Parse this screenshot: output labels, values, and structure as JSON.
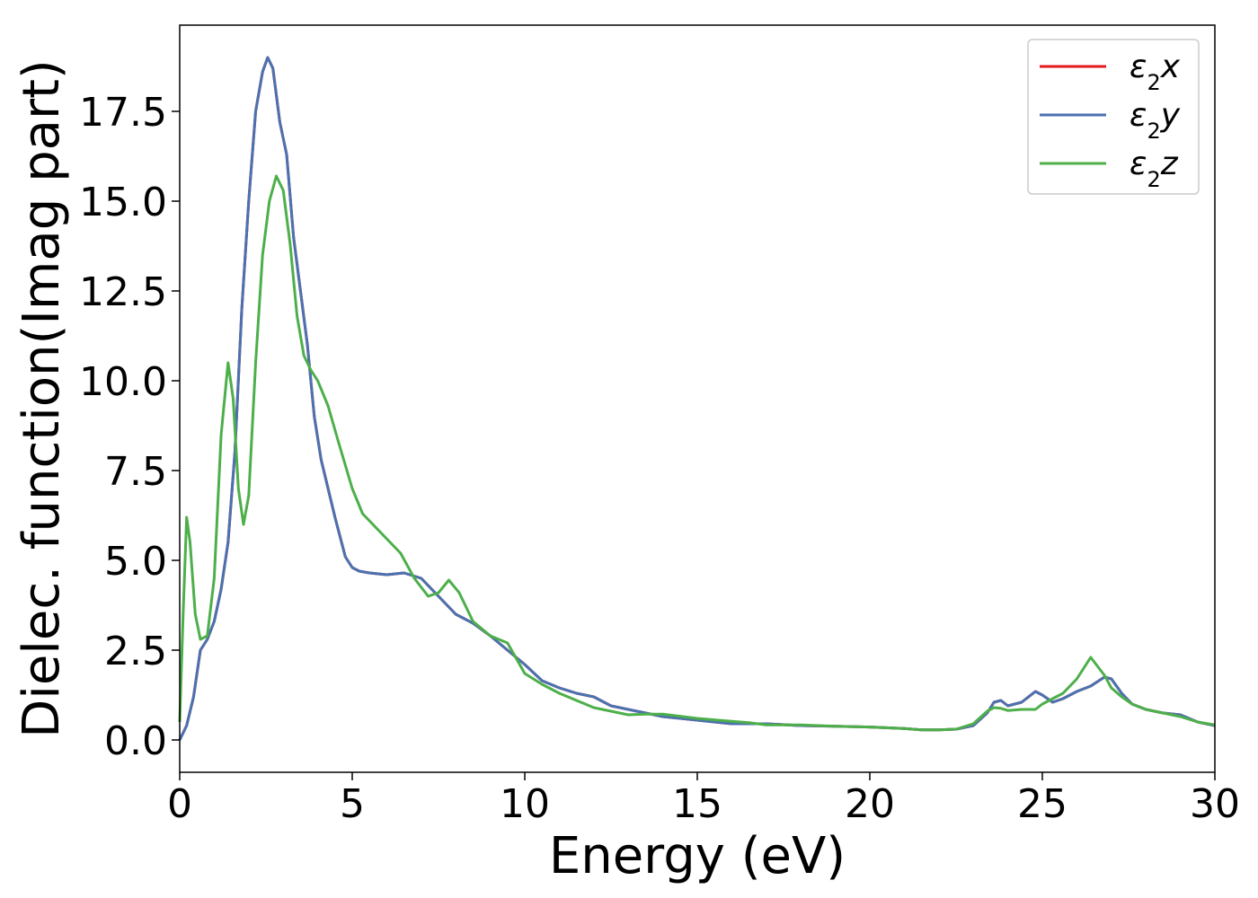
{
  "chart_data": {
    "type": "line",
    "xlabel": "Energy (eV)",
    "ylabel": "Dielec. function(Imag part)",
    "xlim": [
      0,
      30
    ],
    "ylim": [
      -0.9,
      19.9
    ],
    "xticks": [
      0,
      5,
      10,
      15,
      20,
      25,
      30
    ],
    "xtick_labels": [
      "0",
      "5",
      "10",
      "15",
      "20",
      "25",
      "30"
    ],
    "yticks": [
      0,
      2.5,
      5,
      7.5,
      10,
      12.5,
      15,
      17.5
    ],
    "ytick_labels": [
      "0.0",
      "2.5",
      "5.0",
      "7.5",
      "10.0",
      "12.5",
      "15.0",
      "17.5"
    ],
    "grid": false,
    "legend_position": "top-right",
    "series": [
      {
        "name": "ε₂x",
        "legend_base": "ε",
        "legend_sub": "2",
        "legend_var": "x",
        "color": "#e41a1c",
        "x": [
          0,
          0.2,
          0.4,
          0.6,
          0.8,
          1.0,
          1.2,
          1.4,
          1.6,
          1.8,
          2.0,
          2.2,
          2.4,
          2.55,
          2.7,
          2.9,
          3.1,
          3.3,
          3.5,
          3.7,
          3.9,
          4.1,
          4.3,
          4.5,
          4.8,
          5.0,
          5.2,
          5.5,
          6.0,
          6.5,
          7.0,
          7.5,
          8.0,
          8.5,
          9.0,
          9.5,
          10.0,
          10.5,
          11.0,
          11.5,
          12.0,
          12.5,
          13.0,
          13.5,
          14.0,
          15.0,
          16.0,
          16.5,
          17.0,
          18.0,
          19.0,
          20.0,
          21.0,
          21.5,
          22.0,
          22.5,
          23.0,
          23.4,
          23.6,
          23.8,
          24.0,
          24.4,
          24.8,
          25.0,
          25.3,
          25.6,
          26.0,
          26.4,
          26.8,
          27.0,
          27.3,
          27.6,
          28.0,
          28.5,
          29.0,
          29.5,
          30.0
        ],
        "y": [
          0.0,
          0.4,
          1.2,
          2.5,
          2.8,
          3.3,
          4.2,
          5.5,
          8.0,
          12.0,
          15.0,
          17.5,
          18.6,
          19.0,
          18.7,
          17.2,
          16.3,
          14.0,
          12.5,
          11.0,
          9.0,
          7.8,
          7.0,
          6.2,
          5.1,
          4.8,
          4.7,
          4.65,
          4.6,
          4.65,
          4.5,
          4.0,
          3.5,
          3.25,
          2.9,
          2.5,
          2.1,
          1.65,
          1.45,
          1.3,
          1.2,
          0.95,
          0.85,
          0.75,
          0.65,
          0.55,
          0.45,
          0.45,
          0.45,
          0.4,
          0.38,
          0.36,
          0.32,
          0.28,
          0.28,
          0.3,
          0.4,
          0.75,
          1.05,
          1.1,
          0.95,
          1.05,
          1.35,
          1.25,
          1.05,
          1.15,
          1.35,
          1.5,
          1.75,
          1.7,
          1.3,
          1.0,
          0.85,
          0.75,
          0.7,
          0.5,
          0.4
        ]
      },
      {
        "name": "ε₂y",
        "legend_base": "ε",
        "legend_sub": "2",
        "legend_var": "y",
        "color": "#4a72b0",
        "x": [
          0,
          0.2,
          0.4,
          0.6,
          0.8,
          1.0,
          1.2,
          1.4,
          1.6,
          1.8,
          2.0,
          2.2,
          2.4,
          2.55,
          2.7,
          2.9,
          3.1,
          3.3,
          3.5,
          3.7,
          3.9,
          4.1,
          4.3,
          4.5,
          4.8,
          5.0,
          5.2,
          5.5,
          6.0,
          6.5,
          7.0,
          7.5,
          8.0,
          8.5,
          9.0,
          9.5,
          10.0,
          10.5,
          11.0,
          11.5,
          12.0,
          12.5,
          13.0,
          13.5,
          14.0,
          15.0,
          16.0,
          16.5,
          17.0,
          18.0,
          19.0,
          20.0,
          21.0,
          21.5,
          22.0,
          22.5,
          23.0,
          23.4,
          23.6,
          23.8,
          24.0,
          24.4,
          24.8,
          25.0,
          25.3,
          25.6,
          26.0,
          26.4,
          26.8,
          27.0,
          27.3,
          27.6,
          28.0,
          28.5,
          29.0,
          29.5,
          30.0
        ],
        "y": [
          0.0,
          0.4,
          1.2,
          2.5,
          2.8,
          3.3,
          4.2,
          5.5,
          8.0,
          12.0,
          15.0,
          17.5,
          18.6,
          19.0,
          18.7,
          17.2,
          16.3,
          14.0,
          12.5,
          11.0,
          9.0,
          7.8,
          7.0,
          6.2,
          5.1,
          4.8,
          4.7,
          4.65,
          4.6,
          4.65,
          4.5,
          4.0,
          3.5,
          3.25,
          2.9,
          2.5,
          2.1,
          1.65,
          1.45,
          1.3,
          1.2,
          0.95,
          0.85,
          0.75,
          0.65,
          0.55,
          0.45,
          0.45,
          0.45,
          0.4,
          0.38,
          0.36,
          0.32,
          0.28,
          0.28,
          0.3,
          0.4,
          0.75,
          1.05,
          1.1,
          0.95,
          1.05,
          1.35,
          1.25,
          1.05,
          1.15,
          1.35,
          1.5,
          1.75,
          1.7,
          1.3,
          1.0,
          0.85,
          0.75,
          0.7,
          0.5,
          0.4
        ]
      },
      {
        "name": "ε₂z",
        "legend_base": "ε",
        "legend_sub": "2",
        "legend_var": "z",
        "color": "#4daf4a",
        "x": [
          0,
          0.1,
          0.2,
          0.3,
          0.45,
          0.6,
          0.8,
          1.0,
          1.2,
          1.4,
          1.55,
          1.7,
          1.85,
          2.0,
          2.2,
          2.4,
          2.6,
          2.8,
          3.0,
          3.2,
          3.4,
          3.6,
          3.8,
          4.0,
          4.3,
          4.6,
          5.0,
          5.3,
          5.6,
          6.0,
          6.4,
          6.8,
          7.2,
          7.5,
          7.8,
          8.1,
          8.5,
          9.0,
          9.5,
          10.0,
          10.5,
          11.0,
          11.5,
          12.0,
          12.5,
          13.0,
          13.5,
          14.0,
          15.0,
          16.0,
          16.5,
          17.0,
          18.0,
          19.0,
          20.0,
          21.0,
          21.5,
          22.0,
          22.5,
          23.0,
          23.4,
          23.6,
          23.8,
          24.0,
          24.4,
          24.8,
          25.0,
          25.3,
          25.6,
          26.0,
          26.4,
          26.8,
          27.0,
          27.3,
          27.6,
          28.0,
          28.5,
          29.0,
          29.5,
          30.0
        ],
        "y": [
          0.5,
          3.5,
          6.2,
          5.5,
          3.5,
          2.8,
          2.9,
          4.5,
          8.5,
          10.5,
          9.5,
          7.0,
          6.0,
          6.8,
          10.5,
          13.5,
          15.0,
          15.7,
          15.3,
          13.8,
          11.8,
          10.7,
          10.3,
          10.0,
          9.3,
          8.3,
          7.0,
          6.3,
          6.0,
          5.6,
          5.2,
          4.5,
          4.0,
          4.1,
          4.45,
          4.1,
          3.3,
          2.9,
          2.7,
          1.85,
          1.55,
          1.3,
          1.1,
          0.9,
          0.8,
          0.7,
          0.72,
          0.72,
          0.6,
          0.52,
          0.48,
          0.42,
          0.42,
          0.38,
          0.36,
          0.32,
          0.28,
          0.28,
          0.3,
          0.45,
          0.8,
          0.9,
          0.88,
          0.82,
          0.85,
          0.85,
          1.0,
          1.15,
          1.3,
          1.7,
          2.3,
          1.8,
          1.45,
          1.2,
          1.0,
          0.85,
          0.75,
          0.65,
          0.5,
          0.42
        ]
      }
    ]
  }
}
